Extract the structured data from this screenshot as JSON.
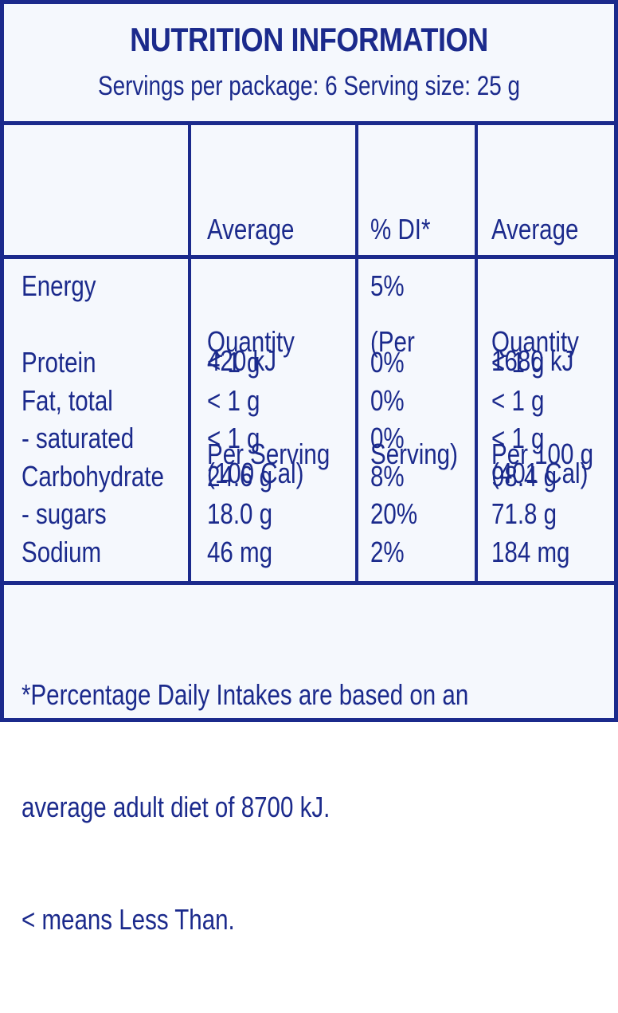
{
  "header": {
    "title": "NUTRITION INFORMATION",
    "subtitle": "Servings per package: 6 Serving size: 25 g"
  },
  "columns": {
    "per_serving": [
      "Average",
      "Quantity",
      "Per Serving"
    ],
    "di": [
      "% DI*",
      "(Per",
      "Serving)"
    ],
    "per_100g": [
      "Average",
      "Quantity",
      "Per 100 g"
    ]
  },
  "rows": {
    "energy": {
      "label": "Energy",
      "per_serving": [
        "420 kJ",
        "(100 Cal)"
      ],
      "di": "5%",
      "per_100g": [
        "1680 kJ",
        "(401 Cal)"
      ]
    },
    "protein": {
      "label": "Protein",
      "per_serving": "< 1 g",
      "di": "0%",
      "per_100g": "< 1 g"
    },
    "fat": {
      "label": "Fat, total",
      "per_serving": "< 1 g",
      "di": "0%",
      "per_100g": "< 1 g"
    },
    "saturated": {
      "label": "- saturated",
      "per_serving": "< 1 g",
      "di": "0%",
      "per_100g": "< 1 g"
    },
    "carbohydrate": {
      "label": "Carbohydrate",
      "per_serving": "24.6 g",
      "di": "8%",
      "per_100g": "98.4 g"
    },
    "sugars": {
      "label": "- sugars",
      "per_serving": "18.0 g",
      "di": "20%",
      "per_100g": "71.8 g"
    },
    "sodium": {
      "label": "Sodium",
      "per_serving": "46 mg",
      "di": "2%",
      "per_100g": "184 mg"
    }
  },
  "footer": {
    "line1": "*Percentage Daily Intakes are based on an",
    "line2": "average adult diet of 8700 kJ.",
    "line3": "< means Less Than."
  },
  "colors": {
    "ink": "#1b2a8c",
    "background": "#f5f8fd"
  }
}
